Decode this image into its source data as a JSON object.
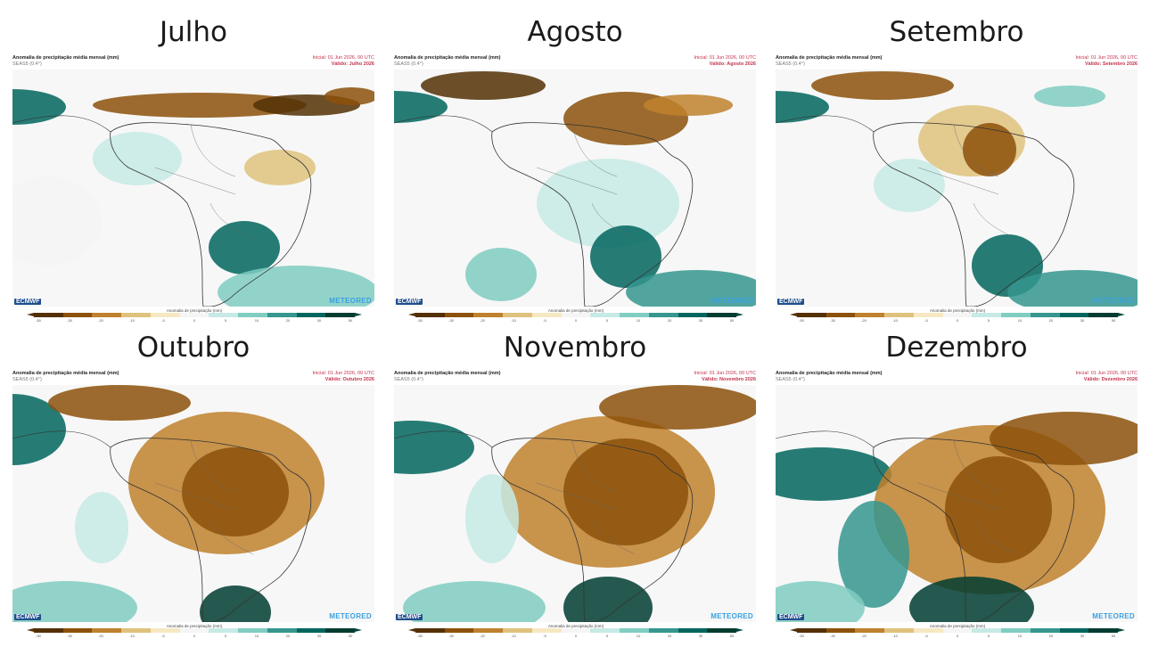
{
  "header": {
    "title": "Anomalia de precipitação média mensal (mm)",
    "model": "SEAS5 (0.4°)",
    "init": "Inicial: 01 Jun 2026, 00 UTC",
    "valid_prefix": "Válido:"
  },
  "colorbar": {
    "label": "Anomalia de precipitação (mm)",
    "ticks": [
      "-50",
      "-30",
      "-20",
      "-10",
      "-5",
      "0",
      "5",
      "10",
      "20",
      "30",
      "50"
    ],
    "colors": [
      "#543005",
      "#8c510a",
      "#bf812d",
      "#dfc27d",
      "#f6e8c3",
      "#f5f5f5",
      "#c7eae5",
      "#80cdc1",
      "#35978f",
      "#01665e",
      "#003c30"
    ]
  },
  "brands": {
    "left": "ECMWF",
    "right": "METEORED"
  },
  "panels": [
    {
      "month": "Julho",
      "valid": "Válido: Julho 2026"
    },
    {
      "month": "Agosto",
      "valid": "Válido: Agosto 2026"
    },
    {
      "month": "Setembro",
      "valid": "Válido: Setembro 2026"
    },
    {
      "month": "Outubro",
      "valid": "Válido: Outubro 2026"
    },
    {
      "month": "Novembro",
      "valid": "Válido: Novembro 2026"
    },
    {
      "month": "Dezembro",
      "valid": "Válido: Dezembro 2026"
    }
  ]
}
